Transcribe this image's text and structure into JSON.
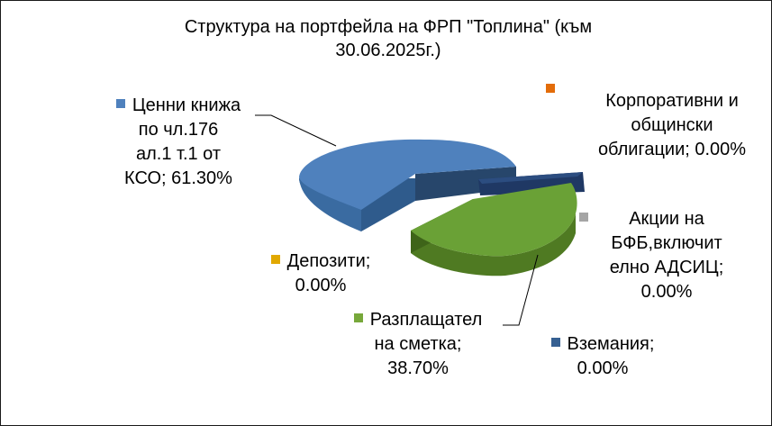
{
  "chart_data": {
    "type": "pie",
    "style": "3d-exploded",
    "title_line1": "Структура  на портфейла на ФРП \"Топлина\" (към",
    "title_line2": "30.06.2025г.)",
    "slices": [
      {
        "line1": "Ценни книжа",
        "line2": "по чл.176",
        "line3": "ал.1 т.1 от",
        "line4": "КСО; 61.30%",
        "value": 61.3,
        "color": "#4F81BD"
      },
      {
        "line1": "Корпоративни и",
        "line2": "общински",
        "line3": "облигации; 0.00%",
        "value": 0.0,
        "color": "#E36C09"
      },
      {
        "line1": "Акции на",
        "line2": "БФБ,включит",
        "line3": "елно АДСИЦ;",
        "line4": "0.00%",
        "value": 0.0,
        "color": "#A5A5A5"
      },
      {
        "line1": "Вземания;",
        "line2": "0.00%",
        "value": 0.0,
        "color": "#366092"
      },
      {
        "line1": "Разплащател",
        "line2": "на сметка;",
        "line3": "38.70%",
        "value": 38.7,
        "color": "#77A83A"
      },
      {
        "line1": "Депозити;",
        "line2": "0.00%",
        "value": 0.0,
        "color": "#E1A800"
      }
    ]
  }
}
